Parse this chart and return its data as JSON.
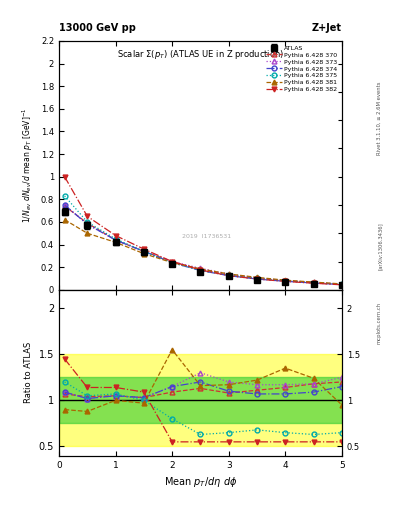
{
  "title_top": "13000 GeV pp",
  "title_right": "Z+Jet",
  "plot_title": "Scalar Σ(p_T) (ATLAS UE in Z production)",
  "ylabel_main": "1/N_{ev} dN_{ev}/d mean p_T [GeV]^{-1}",
  "ylabel_ratio": "Ratio to ATLAS",
  "xlabel": "Mean p_T/dη dφ",
  "rivet_label": "Rivet 3.1.10, ≥ 2.6M events",
  "arxiv_label": "[arXiv:1306.3436]",
  "mcplots_label": "mcplots.cern.ch",
  "watermark": "2019  I1736531",
  "xlim": [
    0,
    5.0
  ],
  "ylim_main": [
    0,
    2.2
  ],
  "ylim_ratio": [
    0.4,
    2.2
  ],
  "x_data": [
    0.1,
    0.5,
    1.0,
    1.5,
    2.0,
    2.5,
    3.0,
    3.5,
    4.0,
    4.5,
    5.0
  ],
  "atlas_y": [
    0.69,
    0.57,
    0.42,
    0.33,
    0.23,
    0.16,
    0.12,
    0.09,
    0.07,
    0.055,
    0.04
  ],
  "atlas_yerr": [
    0.03,
    0.03,
    0.02,
    0.02,
    0.01,
    0.01,
    0.008,
    0.006,
    0.005,
    0.004,
    0.003
  ],
  "series": [
    {
      "label": "Pythia 6.428 370",
      "color": "#cc3333",
      "style": "--",
      "marker": "^",
      "fillstyle": "none",
      "y_main": [
        0.74,
        0.59,
        0.44,
        0.34,
        0.25,
        0.18,
        0.13,
        0.1,
        0.08,
        0.065,
        0.048
      ],
      "y_ratio": [
        1.07,
        1.04,
        1.05,
        1.03,
        1.09,
        1.13,
        1.08,
        1.11,
        1.14,
        1.18,
        1.2
      ]
    },
    {
      "label": "Pythia 6.428 373",
      "color": "#aa44cc",
      "style": ":",
      "marker": "^",
      "fillstyle": "none",
      "y_main": [
        0.75,
        0.58,
        0.44,
        0.34,
        0.25,
        0.19,
        0.14,
        0.105,
        0.082,
        0.065,
        0.05
      ],
      "y_ratio": [
        1.09,
        1.02,
        1.05,
        1.03,
        1.15,
        1.3,
        1.2,
        1.17,
        1.17,
        1.18,
        1.25
      ]
    },
    {
      "label": "Pythia 6.428 374",
      "color": "#4444cc",
      "style": "-.",
      "marker": "o",
      "fillstyle": "none",
      "y_main": [
        0.75,
        0.58,
        0.44,
        0.34,
        0.24,
        0.17,
        0.125,
        0.095,
        0.075,
        0.06,
        0.046
      ],
      "y_ratio": [
        1.09,
        1.02,
        1.05,
        1.03,
        1.15,
        1.2,
        1.1,
        1.07,
        1.07,
        1.09,
        1.15
      ]
    },
    {
      "label": "Pythia 6.428 375",
      "color": "#00aaaa",
      "style": ":",
      "marker": "o",
      "fillstyle": "none",
      "y_main": [
        0.83,
        0.6,
        0.45,
        0.34,
        0.24,
        0.17,
        0.13,
        0.1,
        0.08,
        0.064,
        0.05
      ],
      "y_ratio": [
        1.2,
        1.05,
        1.07,
        1.0,
        0.8,
        0.63,
        0.65,
        0.68,
        0.65,
        0.63,
        0.65
      ]
    },
    {
      "label": "Pythia 6.428 381",
      "color": "#aa6600",
      "style": "--",
      "marker": "^",
      "fillstyle": "full",
      "y_main": [
        0.62,
        0.5,
        0.42,
        0.32,
        0.24,
        0.185,
        0.14,
        0.11,
        0.085,
        0.068,
        0.052
      ],
      "y_ratio": [
        0.9,
        0.88,
        1.0,
        0.97,
        1.55,
        1.16,
        1.17,
        1.22,
        1.35,
        1.24,
        0.95
      ]
    },
    {
      "label": "Pythia 6.428 382",
      "color": "#cc2222",
      "style": "-.",
      "marker": "v",
      "fillstyle": "full",
      "y_main": [
        1.0,
        0.65,
        0.48,
        0.36,
        0.25,
        0.175,
        0.125,
        0.095,
        0.074,
        0.058,
        0.044
      ],
      "y_ratio": [
        1.45,
        1.14,
        1.14,
        1.09,
        0.55,
        0.55,
        0.55,
        0.55,
        0.55,
        0.55,
        0.55
      ]
    }
  ]
}
